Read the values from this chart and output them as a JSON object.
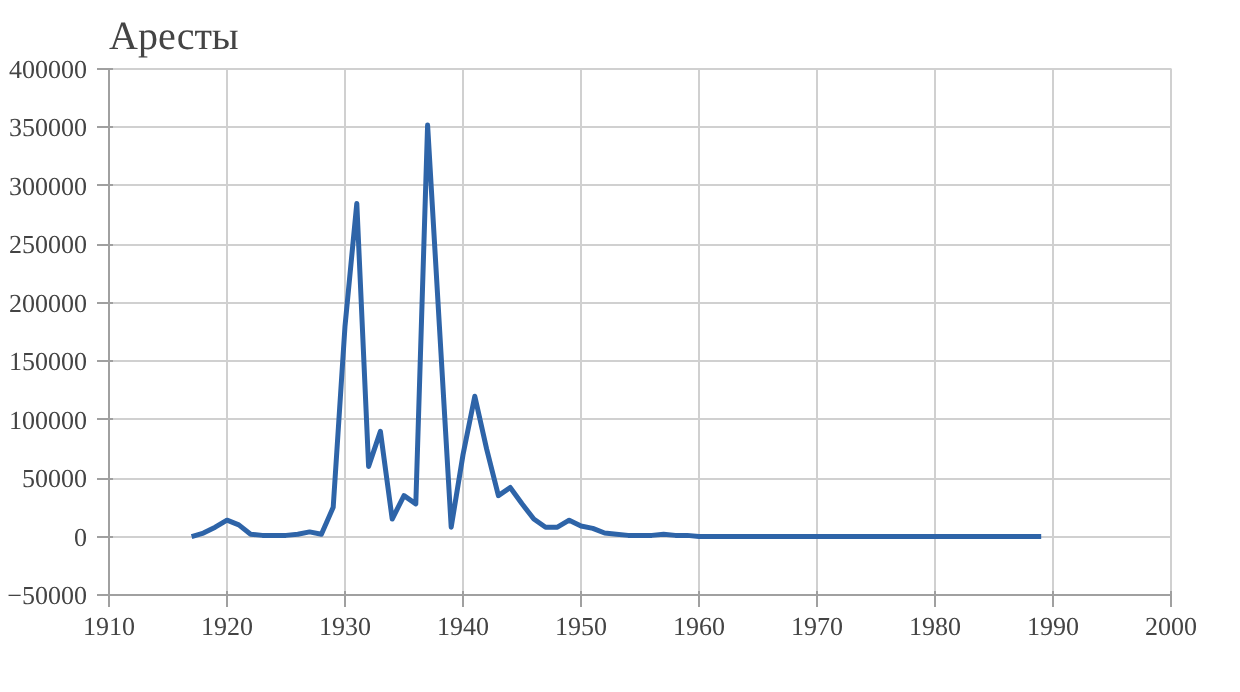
{
  "chart_data": {
    "type": "line",
    "title": "Аресты",
    "x": [
      1917,
      1918,
      1919,
      1920,
      1921,
      1922,
      1923,
      1924,
      1925,
      1926,
      1927,
      1928,
      1929,
      1930,
      1931,
      1932,
      1933,
      1934,
      1935,
      1936,
      1937,
      1938,
      1939,
      1940,
      1941,
      1942,
      1943,
      1944,
      1945,
      1946,
      1947,
      1948,
      1949,
      1950,
      1951,
      1952,
      1953,
      1954,
      1955,
      1956,
      1957,
      1958,
      1959,
      1960,
      1965,
      1970,
      1975,
      1980,
      1985,
      1989
    ],
    "series": [
      {
        "color": "#2e64a8",
        "values": [
          0,
          3000,
          8000,
          14000,
          10000,
          2000,
          1000,
          1000,
          1000,
          2000,
          4000,
          2000,
          25000,
          180000,
          285000,
          60000,
          90000,
          15000,
          35000,
          28000,
          352000,
          180000,
          8000,
          70000,
          120000,
          75000,
          35000,
          42000,
          28000,
          15000,
          8000,
          8000,
          14000,
          9000,
          7000,
          3000,
          2000,
          1000,
          1000,
          1000,
          2000,
          1000,
          1000,
          0,
          0,
          0,
          0,
          0,
          0,
          0
        ]
      }
    ],
    "xlim": [
      1910,
      2000
    ],
    "xticks": [
      1910,
      1920,
      1930,
      1940,
      1950,
      1960,
      1970,
      1980,
      1990,
      2000
    ],
    "ylim": [
      -50000,
      400000
    ],
    "yticks": [
      -50000,
      0,
      50000,
      100000,
      150000,
      200000,
      250000,
      300000,
      350000,
      400000
    ],
    "grid": true
  }
}
